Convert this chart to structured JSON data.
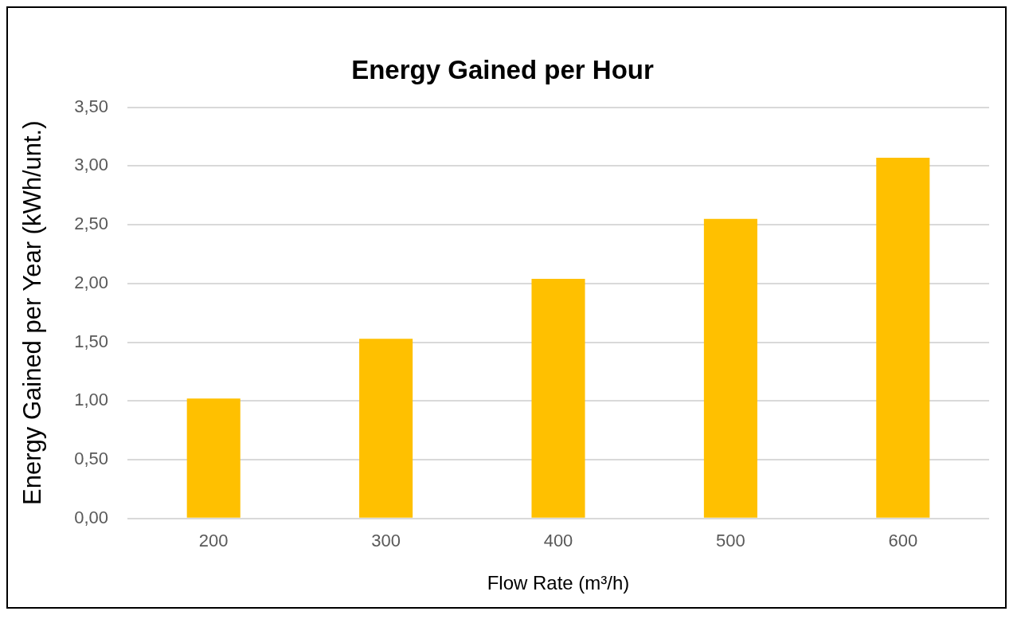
{
  "chart_data": {
    "type": "bar",
    "title": "Energy Gained per Hour",
    "xlabel": "Flow Rate (m³/h)",
    "ylabel": "Energy Gained per Year (kWh/unt.)",
    "categories": [
      "200",
      "300",
      "400",
      "500",
      "600"
    ],
    "values": [
      1.02,
      1.53,
      2.04,
      2.55,
      3.07
    ],
    "color": "#ffc000",
    "ylim": [
      0,
      3.5
    ],
    "yticks": [
      {
        "value": 0,
        "label": "0,00"
      },
      {
        "value": 0.5,
        "label": "0,50"
      },
      {
        "value": 1,
        "label": "1,00"
      },
      {
        "value": 1.5,
        "label": "1,50"
      },
      {
        "value": 2,
        "label": "2,00"
      },
      {
        "value": 2.5,
        "label": "2,50"
      },
      {
        "value": 3,
        "label": "3,00"
      },
      {
        "value": 3.5,
        "label": "3,50"
      }
    ],
    "grid": "y"
  }
}
